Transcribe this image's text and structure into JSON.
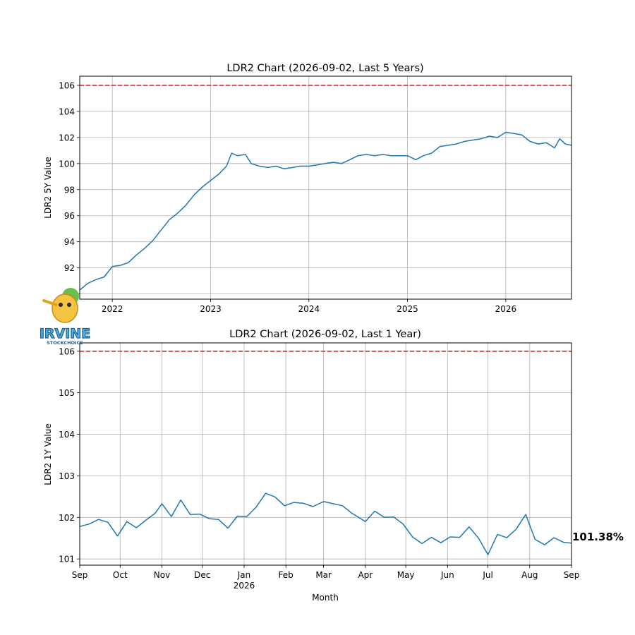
{
  "chart_data": [
    {
      "type": "line",
      "title": "LDR2 Chart (2026-09-02, Last 5 Years)",
      "ylabel": "LDR2 5Y Value",
      "xlabel": "",
      "ylim": [
        89.6,
        106.7
      ],
      "xlim": [
        "2021-09-02",
        "2026-09-02"
      ],
      "yticks": [
        90,
        92,
        94,
        96,
        98,
        100,
        102,
        104,
        106
      ],
      "xticks": [
        {
          "date": "2022-01-01",
          "label": "2022"
        },
        {
          "date": "2023-01-01",
          "label": "2023"
        },
        {
          "date": "2024-01-01",
          "label": "2024"
        },
        {
          "date": "2025-01-01",
          "label": "2025"
        },
        {
          "date": "2026-01-01",
          "label": "2026"
        }
      ],
      "grid": true,
      "reference_line": {
        "value": 106,
        "color": "#d62728",
        "style": "dashed"
      },
      "series": [
        {
          "color": "#1f77b4",
          "points": [
            [
              "2021-09-02",
              90.3
            ],
            [
              "2021-10-01",
              90.8
            ],
            [
              "2021-11-01",
              91.1
            ],
            [
              "2021-12-01",
              91.3
            ],
            [
              "2022-01-01",
              92.1
            ],
            [
              "2022-02-01",
              92.2
            ],
            [
              "2022-03-01",
              92.4
            ],
            [
              "2022-04-01",
              93.0
            ],
            [
              "2022-05-01",
              93.5
            ],
            [
              "2022-06-01",
              94.1
            ],
            [
              "2022-07-01",
              94.9
            ],
            [
              "2022-08-01",
              95.7
            ],
            [
              "2022-09-01",
              96.2
            ],
            [
              "2022-10-01",
              96.8
            ],
            [
              "2022-11-01",
              97.6
            ],
            [
              "2022-12-01",
              98.2
            ],
            [
              "2023-01-01",
              98.7
            ],
            [
              "2023-02-01",
              99.2
            ],
            [
              "2023-03-01",
              99.8
            ],
            [
              "2023-03-20",
              100.8
            ],
            [
              "2023-04-10",
              100.6
            ],
            [
              "2023-05-10",
              100.7
            ],
            [
              "2023-06-01",
              100.0
            ],
            [
              "2023-07-01",
              99.8
            ],
            [
              "2023-08-01",
              99.7
            ],
            [
              "2023-09-01",
              99.8
            ],
            [
              "2023-10-01",
              99.6
            ],
            [
              "2023-11-01",
              99.7
            ],
            [
              "2023-12-01",
              99.8
            ],
            [
              "2024-01-01",
              99.8
            ],
            [
              "2024-02-01",
              99.9
            ],
            [
              "2024-03-01",
              100.0
            ],
            [
              "2024-04-01",
              100.1
            ],
            [
              "2024-05-01",
              100.0
            ],
            [
              "2024-06-01",
              100.3
            ],
            [
              "2024-07-01",
              100.6
            ],
            [
              "2024-08-01",
              100.7
            ],
            [
              "2024-09-01",
              100.6
            ],
            [
              "2024-10-01",
              100.7
            ],
            [
              "2024-11-01",
              100.6
            ],
            [
              "2024-12-01",
              100.6
            ],
            [
              "2025-01-01",
              100.6
            ],
            [
              "2025-02-01",
              100.3
            ],
            [
              "2025-03-01",
              100.6
            ],
            [
              "2025-04-01",
              100.8
            ],
            [
              "2025-05-01",
              101.3
            ],
            [
              "2025-06-01",
              101.4
            ],
            [
              "2025-07-01",
              101.5
            ],
            [
              "2025-08-01",
              101.7
            ],
            [
              "2025-09-01",
              101.8
            ],
            [
              "2025-10-01",
              101.9
            ],
            [
              "2025-11-01",
              102.1
            ],
            [
              "2025-12-01",
              102.0
            ],
            [
              "2026-01-01",
              102.4
            ],
            [
              "2026-02-01",
              102.3
            ],
            [
              "2026-03-01",
              102.2
            ],
            [
              "2026-04-01",
              101.7
            ],
            [
              "2026-05-01",
              101.5
            ],
            [
              "2026-06-01",
              101.6
            ],
            [
              "2026-07-01",
              101.2
            ],
            [
              "2026-07-20",
              101.9
            ],
            [
              "2026-08-10",
              101.5
            ],
            [
              "2026-09-02",
              101.4
            ]
          ]
        }
      ]
    },
    {
      "type": "line",
      "title": "LDR2 Chart (2026-09-02, Last 1 Year)",
      "ylabel": "LDR2 1Y Value",
      "xlabel": "Month",
      "ylim": [
        100.85,
        106.2
      ],
      "xlim": [
        "2025-09-01",
        "2026-09-01"
      ],
      "yticks": [
        101,
        102,
        103,
        104,
        105,
        106
      ],
      "xticks": [
        {
          "date": "2025-09-01",
          "label": "Sep"
        },
        {
          "date": "2025-10-01",
          "label": "Oct"
        },
        {
          "date": "2025-11-01",
          "label": "Nov"
        },
        {
          "date": "2025-12-01",
          "label": "Dec"
        },
        {
          "date": "2026-01-01",
          "label": "Jan",
          "sublabel": "2026"
        },
        {
          "date": "2026-02-01",
          "label": "Feb"
        },
        {
          "date": "2026-03-01",
          "label": "Mar"
        },
        {
          "date": "2026-04-01",
          "label": "Apr"
        },
        {
          "date": "2026-05-01",
          "label": "May"
        },
        {
          "date": "2026-06-01",
          "label": "Jun"
        },
        {
          "date": "2026-07-01",
          "label": "Jul"
        },
        {
          "date": "2026-08-01",
          "label": "Aug"
        },
        {
          "date": "2026-09-01",
          "label": "Sep"
        }
      ],
      "grid": true,
      "reference_line": {
        "value": 106,
        "color": "#d62728",
        "style": "dashed"
      },
      "end_label": "101.38%",
      "series": [
        {
          "color": "#1f77b4",
          "points": [
            [
              "2025-09-01",
              101.78
            ],
            [
              "2025-09-08",
              101.84
            ],
            [
              "2025-09-15",
              101.95
            ],
            [
              "2025-09-22",
              101.88
            ],
            [
              "2025-09-29",
              101.55
            ],
            [
              "2025-10-06",
              101.9
            ],
            [
              "2025-10-13",
              101.75
            ],
            [
              "2025-10-20",
              101.93
            ],
            [
              "2025-10-27",
              102.1
            ],
            [
              "2025-11-01",
              102.33
            ],
            [
              "2025-11-08",
              102.02
            ],
            [
              "2025-11-15",
              102.42
            ],
            [
              "2025-11-22",
              102.07
            ],
            [
              "2025-11-29",
              102.08
            ],
            [
              "2025-12-06",
              101.97
            ],
            [
              "2025-12-13",
              101.95
            ],
            [
              "2025-12-20",
              101.74
            ],
            [
              "2025-12-27",
              102.03
            ],
            [
              "2026-01-03",
              102.02
            ],
            [
              "2026-01-10",
              102.25
            ],
            [
              "2026-01-17",
              102.58
            ],
            [
              "2026-01-24",
              102.49
            ],
            [
              "2026-01-31",
              102.28
            ],
            [
              "2026-02-07",
              102.36
            ],
            [
              "2026-02-14",
              102.34
            ],
            [
              "2026-02-21",
              102.26
            ],
            [
              "2026-03-01",
              102.38
            ],
            [
              "2026-03-08",
              102.33
            ],
            [
              "2026-03-15",
              102.28
            ],
            [
              "2026-03-22",
              102.1
            ],
            [
              "2026-04-01",
              101.9
            ],
            [
              "2026-04-08",
              102.15
            ],
            [
              "2026-04-15",
              102.0
            ],
            [
              "2026-04-22",
              102.01
            ],
            [
              "2026-04-29",
              101.84
            ],
            [
              "2026-05-06",
              101.53
            ],
            [
              "2026-05-13",
              101.37
            ],
            [
              "2026-05-20",
              101.52
            ],
            [
              "2026-05-27",
              101.39
            ],
            [
              "2026-06-03",
              101.53
            ],
            [
              "2026-06-10",
              101.52
            ],
            [
              "2026-06-17",
              101.77
            ],
            [
              "2026-06-24",
              101.5
            ],
            [
              "2026-07-01",
              101.1
            ],
            [
              "2026-07-08",
              101.59
            ],
            [
              "2026-07-15",
              101.51
            ],
            [
              "2026-07-22",
              101.72
            ],
            [
              "2026-07-29",
              102.07
            ],
            [
              "2026-08-05",
              101.47
            ],
            [
              "2026-08-12",
              101.34
            ],
            [
              "2026-08-19",
              101.51
            ],
            [
              "2026-08-26",
              101.4
            ],
            [
              "2026-09-01",
              101.38
            ]
          ]
        }
      ]
    }
  ],
  "watermark": {
    "lines": [
      "IRVINE",
      "STOCKCHOICE"
    ]
  }
}
